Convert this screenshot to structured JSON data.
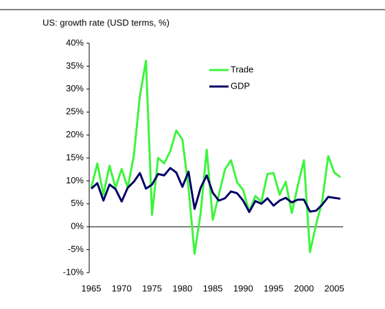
{
  "chart_data": {
    "type": "line",
    "title": "US: growth rate (USD terms, %)",
    "x": [
      1965,
      1966,
      1967,
      1968,
      1969,
      1970,
      1971,
      1972,
      1973,
      1974,
      1975,
      1976,
      1977,
      1978,
      1979,
      1980,
      1981,
      1982,
      1983,
      1984,
      1985,
      1986,
      1987,
      1988,
      1989,
      1990,
      1991,
      1992,
      1993,
      1994,
      1995,
      1996,
      1997,
      1998,
      1999,
      2000,
      2001,
      2002,
      2003,
      2004,
      2005,
      2006
    ],
    "series": [
      {
        "name": "Trade",
        "color": "#3cf53c",
        "values": [
          8.5,
          13.8,
          7,
          13.3,
          8.5,
          12.6,
          8.5,
          15.5,
          28.5,
          36.2,
          2.6,
          15,
          13.8,
          16.5,
          21,
          19,
          8.5,
          -5.9,
          3,
          16.8,
          1.5,
          7,
          12.5,
          14.5,
          9.7,
          8,
          3.3,
          6.7,
          5.5,
          11.5,
          11.7,
          7,
          9.8,
          3,
          9,
          14.5,
          -5.5,
          0.5,
          5.5,
          15.4,
          11.8,
          10.8
        ]
      },
      {
        "name": "GDP",
        "color": "#000066",
        "values": [
          8.3,
          9.5,
          5.7,
          9.2,
          8.2,
          5.5,
          8.5,
          9.8,
          11.7,
          8.3,
          9.2,
          11.5,
          11.2,
          12.8,
          11.8,
          8.7,
          12,
          3.9,
          8.5,
          11.2,
          7.4,
          5.7,
          6.2,
          7.7,
          7.3,
          5.7,
          3.2,
          5.6,
          5,
          6.2,
          4.6,
          5.7,
          6.3,
          5.3,
          5.9,
          5.9,
          3.3,
          3.5,
          4.8,
          6.5,
          6.3,
          6.1
        ]
      }
    ],
    "xlim": [
      1965,
      2006
    ],
    "xticks": [
      1965,
      1970,
      1975,
      1980,
      1985,
      1990,
      1995,
      2000,
      2005
    ],
    "ylim": [
      -10,
      40
    ],
    "yticks": [
      {
        "value": -10,
        "label": "-10%"
      },
      {
        "value": -5,
        "label": "-5%"
      },
      {
        "value": 0,
        "label": "0%"
      },
      {
        "value": 5,
        "label": "5%"
      },
      {
        "value": 10,
        "label": "10%"
      },
      {
        "value": 15,
        "label": "15%"
      },
      {
        "value": 20,
        "label": "20%"
      },
      {
        "value": 25,
        "label": "25%"
      },
      {
        "value": 30,
        "label": "30%"
      },
      {
        "value": 35,
        "label": "35%"
      },
      {
        "value": 40,
        "label": "40%"
      }
    ],
    "grid": false,
    "legend": "top-center"
  }
}
